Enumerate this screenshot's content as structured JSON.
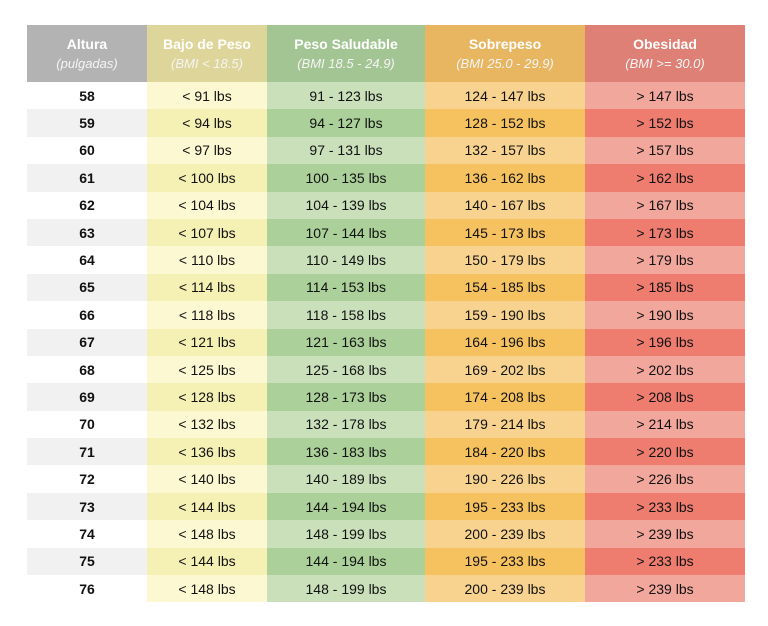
{
  "table": {
    "columns": [
      {
        "title": "Altura",
        "subtitle": "(pulgadas)"
      },
      {
        "title": "Bajo de Peso",
        "subtitle": "(BMI < 18.5)"
      },
      {
        "title": "Peso Saludable",
        "subtitle": "(BMI 18.5 - 24.9)"
      },
      {
        "title": "Sobrepeso",
        "subtitle": "(BMI 25.0 - 29.9)"
      },
      {
        "title": "Obesidad",
        "subtitle": "(BMI >= 30.0)"
      }
    ],
    "rows": [
      [
        "58",
        "< 91 lbs",
        "91 - 123 lbs",
        "124 - 147 lbs",
        "> 147 lbs"
      ],
      [
        "59",
        "< 94 lbs",
        "94 - 127 lbs",
        "128 - 152 lbs",
        "> 152 lbs"
      ],
      [
        "60",
        "< 97 lbs",
        "97 - 131 lbs",
        "132 - 157 lbs",
        "> 157 lbs"
      ],
      [
        "61",
        "< 100 lbs",
        "100 - 135 lbs",
        "136 - 162 lbs",
        "> 162 lbs"
      ],
      [
        "62",
        "< 104 lbs",
        "104 - 139 lbs",
        "140 - 167 lbs",
        "> 167 lbs"
      ],
      [
        "63",
        "< 107 lbs",
        "107 - 144 lbs",
        "145 - 173 lbs",
        "> 173 lbs"
      ],
      [
        "64",
        "< 110 lbs",
        "110 - 149 lbs",
        "150 - 179 lbs",
        "> 179 lbs"
      ],
      [
        "65",
        "< 114 lbs",
        "114 - 153 lbs",
        "154 - 185 lbs",
        "> 185 lbs"
      ],
      [
        "66",
        "< 118 lbs",
        "118 - 158 lbs",
        "159 - 190 lbs",
        "> 190 lbs"
      ],
      [
        "67",
        "< 121 lbs",
        "121 - 163 lbs",
        "164 - 196 lbs",
        "> 196 lbs"
      ],
      [
        "68",
        "< 125 lbs",
        "125 - 168 lbs",
        "169 - 202 lbs",
        "> 202 lbs"
      ],
      [
        "69",
        "< 128 lbs",
        "128 - 173 lbs",
        "174 - 208 lbs",
        "> 208 lbs"
      ],
      [
        "70",
        "< 132 lbs",
        "132 - 178 lbs",
        "179 - 214 lbs",
        "> 214 lbs"
      ],
      [
        "71",
        "< 136 lbs",
        "136 - 183 lbs",
        "184 - 220 lbs",
        "> 220 lbs"
      ],
      [
        "72",
        "< 140 lbs",
        "140 - 189 lbs",
        "190 - 226 lbs",
        "> 226 lbs"
      ],
      [
        "73",
        "< 144 lbs",
        "144 - 194 lbs",
        "195 - 233 lbs",
        "> 233 lbs"
      ],
      [
        "74",
        "< 148 lbs",
        "148 - 199 lbs",
        "200 - 239 lbs",
        "> 239 lbs"
      ],
      [
        "75",
        "< 144 lbs",
        "144 - 194 lbs",
        "195 - 233 lbs",
        "> 233 lbs"
      ],
      [
        "76",
        "< 148 lbs",
        "148 - 199 lbs",
        "200 - 239 lbs",
        "> 239 lbs"
      ]
    ]
  }
}
